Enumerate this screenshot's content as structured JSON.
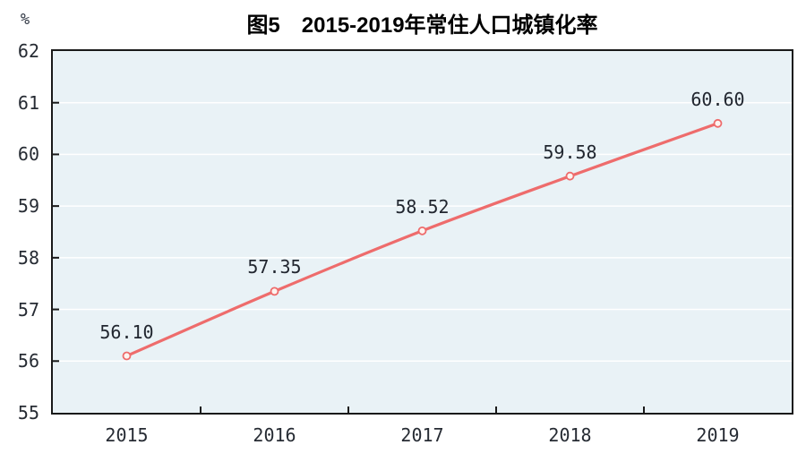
{
  "header": {
    "title": "图5　2015-2019年常住人口城镇化率",
    "unit_label": "%"
  },
  "chart_data": {
    "type": "line",
    "title": "图5　2015-2019年常住人口城镇化率",
    "categories": [
      "2015",
      "2016",
      "2017",
      "2018",
      "2019"
    ],
    "series": [
      {
        "name": "常住人口城镇化率",
        "values": [
          56.1,
          57.35,
          58.52,
          59.58,
          60.6
        ]
      }
    ],
    "data_labels": [
      "56.10",
      "57.35",
      "58.52",
      "59.58",
      "60.60"
    ],
    "xlabel": "",
    "ylabel": "%",
    "ylim": [
      55,
      62
    ],
    "y_ticks": [
      55,
      56,
      57,
      58,
      59,
      60,
      61,
      62
    ],
    "grid": true,
    "legend_position": "none",
    "style": {
      "line_color": "#ee6c6c",
      "marker_fill": "#fdf4f0",
      "marker_stroke": "#ee6c6c",
      "plot_bg": "#e9f2f6",
      "grid_color": "#ffffff",
      "axis_color": "#1a1a1a",
      "tick_label_color": "#262b33",
      "data_label_color": "#21262f",
      "title_color": "#000000"
    }
  }
}
